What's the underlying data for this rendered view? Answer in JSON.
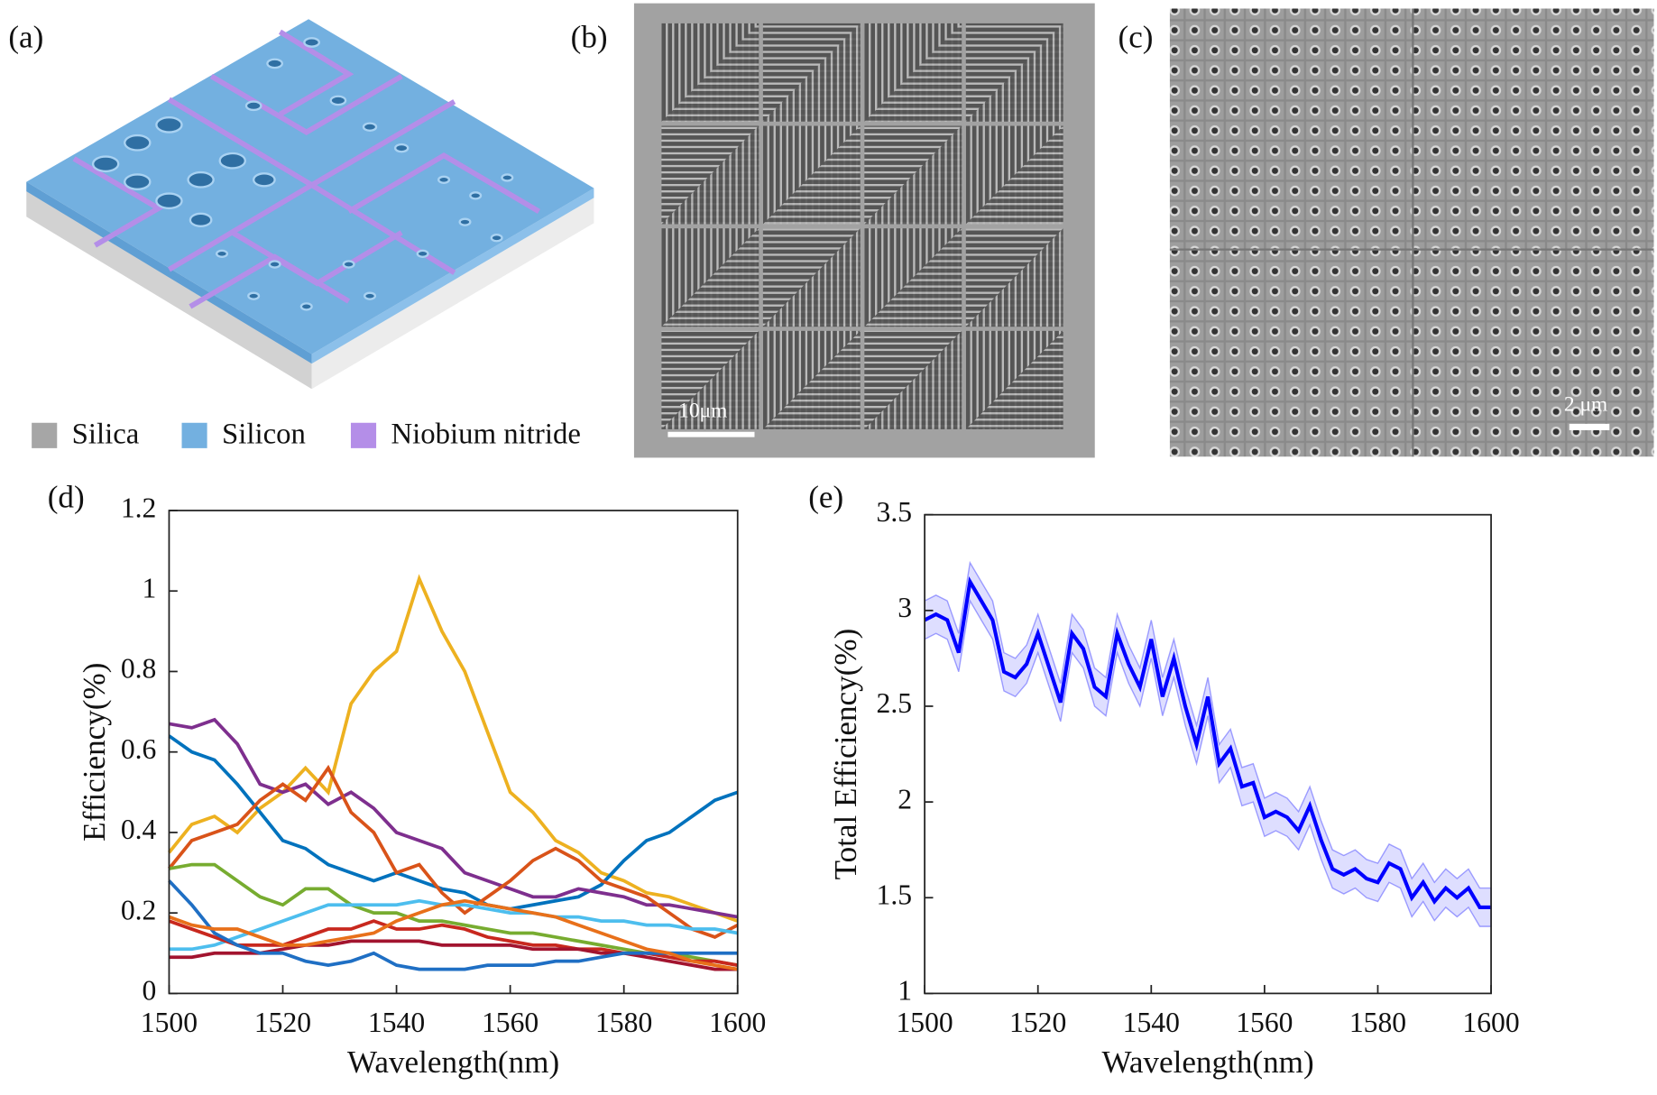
{
  "panels": {
    "labels": [
      "(a)",
      "(b)",
      "(c)",
      "(d)",
      "(e)"
    ],
    "legend": [
      "Silica",
      "Silicon",
      "Niobium nitride"
    ],
    "legend_colors": [
      "#a6a6a6",
      "#73b0e0",
      "#b48ee8"
    ],
    "scale_bars": [
      "10μm",
      "2 μm"
    ]
  },
  "chart_data": [
    {
      "type": "line",
      "xlabel": "Wavelength(nm)",
      "ylabel": "Efficiency(%)",
      "x": [
        1500,
        1504,
        1508,
        1512,
        1516,
        1520,
        1524,
        1528,
        1532,
        1536,
        1540,
        1544,
        1548,
        1552,
        1556,
        1560,
        1564,
        1568,
        1572,
        1576,
        1580,
        1584,
        1588,
        1592,
        1596,
        1600
      ],
      "xlim": [
        1500,
        1600
      ],
      "xticks": [
        1500,
        1520,
        1540,
        1560,
        1580,
        1600
      ],
      "ylim": [
        0,
        1.2
      ],
      "yticks": [
        0,
        0.2,
        0.4,
        0.6,
        0.8,
        1,
        1.2
      ],
      "series": [
        {
          "color": "#EDB120",
          "values": [
            0.35,
            0.42,
            0.44,
            0.4,
            0.46,
            0.5,
            0.56,
            0.5,
            0.72,
            0.8,
            0.85,
            1.03,
            0.9,
            0.8,
            0.65,
            0.5,
            0.45,
            0.38,
            0.35,
            0.3,
            0.28,
            0.25,
            0.24,
            0.22,
            0.2,
            0.18
          ]
        },
        {
          "color": "#0072BD",
          "values": [
            0.64,
            0.6,
            0.58,
            0.52,
            0.45,
            0.38,
            0.36,
            0.32,
            0.3,
            0.28,
            0.3,
            0.28,
            0.26,
            0.25,
            0.22,
            0.21,
            0.22,
            0.23,
            0.24,
            0.27,
            0.33,
            0.38,
            0.4,
            0.44,
            0.48,
            0.5
          ]
        },
        {
          "color": "#7E2F8E",
          "values": [
            0.67,
            0.66,
            0.68,
            0.62,
            0.52,
            0.5,
            0.52,
            0.47,
            0.5,
            0.46,
            0.4,
            0.38,
            0.36,
            0.3,
            0.28,
            0.26,
            0.24,
            0.24,
            0.26,
            0.25,
            0.24,
            0.22,
            0.22,
            0.21,
            0.2,
            0.19
          ]
        },
        {
          "color": "#D95319",
          "values": [
            0.31,
            0.38,
            0.4,
            0.42,
            0.48,
            0.52,
            0.48,
            0.56,
            0.45,
            0.4,
            0.3,
            0.32,
            0.25,
            0.2,
            0.24,
            0.28,
            0.33,
            0.36,
            0.33,
            0.28,
            0.26,
            0.24,
            0.2,
            0.16,
            0.14,
            0.17
          ]
        },
        {
          "color": "#77AC30",
          "values": [
            0.31,
            0.32,
            0.32,
            0.28,
            0.24,
            0.22,
            0.26,
            0.26,
            0.22,
            0.2,
            0.2,
            0.18,
            0.18,
            0.17,
            0.16,
            0.15,
            0.15,
            0.14,
            0.13,
            0.12,
            0.11,
            0.1,
            0.1,
            0.09,
            0.08,
            0.07
          ]
        },
        {
          "color": "#4DBEEE",
          "values": [
            0.11,
            0.11,
            0.12,
            0.14,
            0.16,
            0.18,
            0.2,
            0.22,
            0.22,
            0.22,
            0.22,
            0.23,
            0.22,
            0.22,
            0.21,
            0.2,
            0.2,
            0.19,
            0.19,
            0.18,
            0.18,
            0.17,
            0.17,
            0.16,
            0.16,
            0.15
          ]
        },
        {
          "color": "#C8281E",
          "values": [
            0.18,
            0.16,
            0.14,
            0.12,
            0.12,
            0.12,
            0.14,
            0.16,
            0.16,
            0.18,
            0.16,
            0.16,
            0.17,
            0.16,
            0.14,
            0.13,
            0.12,
            0.12,
            0.11,
            0.11,
            0.1,
            0.1,
            0.09,
            0.08,
            0.08,
            0.07
          ]
        },
        {
          "color": "#A2142F",
          "values": [
            0.09,
            0.09,
            0.1,
            0.1,
            0.1,
            0.11,
            0.12,
            0.12,
            0.13,
            0.13,
            0.13,
            0.13,
            0.12,
            0.12,
            0.12,
            0.12,
            0.11,
            0.11,
            0.11,
            0.1,
            0.1,
            0.09,
            0.08,
            0.07,
            0.06,
            0.06
          ]
        },
        {
          "color": "#1F6FC4",
          "values": [
            0.28,
            0.22,
            0.15,
            0.12,
            0.1,
            0.1,
            0.08,
            0.07,
            0.08,
            0.1,
            0.07,
            0.06,
            0.06,
            0.06,
            0.07,
            0.07,
            0.07,
            0.08,
            0.08,
            0.09,
            0.1,
            0.1,
            0.1,
            0.1,
            0.1,
            0.1
          ]
        },
        {
          "color": "#E8701A",
          "values": [
            0.19,
            0.17,
            0.16,
            0.16,
            0.14,
            0.12,
            0.12,
            0.13,
            0.14,
            0.15,
            0.18,
            0.2,
            0.22,
            0.23,
            0.22,
            0.21,
            0.2,
            0.19,
            0.17,
            0.15,
            0.13,
            0.11,
            0.1,
            0.08,
            0.07,
            0.06
          ]
        }
      ]
    },
    {
      "type": "band-line",
      "xlabel": "Wavelength(nm)",
      "ylabel": "Total Efficiency(%)",
      "x": [
        1500,
        1502,
        1504,
        1506,
        1508,
        1510,
        1512,
        1514,
        1516,
        1518,
        1520,
        1522,
        1524,
        1526,
        1528,
        1530,
        1532,
        1534,
        1536,
        1538,
        1540,
        1542,
        1544,
        1546,
        1548,
        1550,
        1552,
        1554,
        1556,
        1558,
        1560,
        1562,
        1564,
        1566,
        1568,
        1570,
        1572,
        1574,
        1576,
        1578,
        1580,
        1582,
        1584,
        1586,
        1588,
        1590,
        1592,
        1594,
        1596,
        1598,
        1600
      ],
      "xlim": [
        1500,
        1600
      ],
      "xticks": [
        1500,
        1520,
        1540,
        1560,
        1580,
        1600
      ],
      "ylim": [
        1,
        3.5
      ],
      "yticks": [
        1,
        1.5,
        2,
        2.5,
        3,
        3.5
      ],
      "series": [
        {
          "color": "#0000FF",
          "values": [
            2.95,
            2.98,
            2.95,
            2.78,
            3.15,
            3.05,
            2.95,
            2.68,
            2.65,
            2.72,
            2.88,
            2.7,
            2.52,
            2.88,
            2.8,
            2.6,
            2.55,
            2.88,
            2.72,
            2.6,
            2.85,
            2.55,
            2.75,
            2.5,
            2.3,
            2.55,
            2.2,
            2.28,
            2.08,
            2.1,
            1.92,
            1.95,
            1.92,
            1.85,
            1.98,
            1.8,
            1.65,
            1.62,
            1.65,
            1.6,
            1.58,
            1.68,
            1.65,
            1.5,
            1.58,
            1.48,
            1.55,
            1.5,
            1.55,
            1.45,
            1.45
          ]
        }
      ],
      "error": 0.1
    }
  ]
}
